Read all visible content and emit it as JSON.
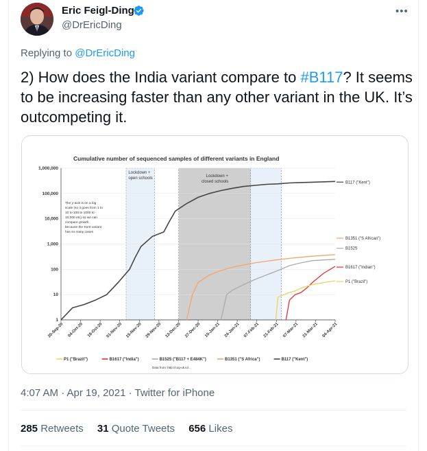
{
  "tweet": {
    "author_name": "Eric Feigl-Ding",
    "handle": "@DrEricDing",
    "more_label": "•••",
    "replying_to_prefix": "Replying to ",
    "replying_to_handle": "@DrEricDing",
    "text_part1": "2) How does the India variant compare to ",
    "hashtag": "#B117",
    "text_part2": "? It seems to be increasing faster than any other variant in the UK. It’s outcompeting it.",
    "timestamp": "4:07 AM · Apr 19, 2021 · Twitter for iPhone",
    "retweets_count": "285",
    "retweets_label": "Retweets",
    "quotes_count": "31",
    "quotes_label": "Quote Tweets",
    "likes_count": "656",
    "likes_label": "Likes"
  },
  "colors": {
    "accent": "#1d9bf0",
    "verified": "#1d9bf0"
  },
  "chart_data": {
    "type": "line",
    "title": "Cumulative number of sequenced samples of different variants in England",
    "yscale": "log",
    "ylim": [
      1,
      1000000
    ],
    "yticks": [
      "1",
      "10",
      "100",
      "1,000",
      "10,000",
      "100,000",
      "1,000,000"
    ],
    "xticks": [
      "20-Sep-20",
      "04-Oct-20",
      "18-Oct-20",
      "01-Nov-20",
      "15-Nov-20",
      "29-Nov-20",
      "13-Dec-20",
      "27-Dec-20",
      "10-Jan-21",
      "24-Jan-21",
      "07-Feb-21",
      "21-Feb-21",
      "07-Mar-21",
      "21-Mar-21",
      "04-Apr-21"
    ],
    "annotations": {
      "lockdown1": "Lockdown +",
      "lockdown1b": "open schools",
      "lockdown2": "Lockdown +",
      "lockdown2b": "closed schools",
      "note1": "The y-axis is on a log",
      "note2": "scale (so it goes from 1 to",
      "note3": "10 to 100 to 1000 to",
      "note4": "10,000 etc) so we can",
      "note5": "compare growth,",
      "note6": "because the Kent variant",
      "note7": "has so many cases",
      "source": "Data from: http://cog-uk.io/..."
    },
    "series": [
      {
        "name": "B117 (\"Kent\")",
        "legend": "B117 (\"Kent\")",
        "color": "#444444",
        "points": [
          [
            0,
            1
          ],
          [
            1,
            3
          ],
          [
            2,
            4
          ],
          [
            3,
            6
          ],
          [
            4,
            10
          ],
          [
            5,
            30
          ],
          [
            6,
            100
          ],
          [
            6.5,
            300
          ],
          [
            7,
            800
          ],
          [
            8,
            2000
          ],
          [
            9,
            3000
          ],
          [
            9.5,
            8000
          ],
          [
            10,
            20000
          ],
          [
            11,
            40000
          ],
          [
            12,
            70000
          ],
          [
            13,
            100000
          ],
          [
            14,
            130000
          ],
          [
            15,
            160000
          ],
          [
            16,
            190000
          ],
          [
            17,
            210000
          ],
          [
            18,
            230000
          ],
          [
            19,
            240000
          ],
          [
            20,
            260000
          ],
          [
            21,
            270000
          ],
          [
            22,
            280000
          ],
          [
            24,
            300000
          ]
        ]
      },
      {
        "name": "B1351 (\"S African\")",
        "legend": "B1351 (\"S Africa\")",
        "color": "#f4a46a",
        "points": [
          [
            11,
            1
          ],
          [
            11.5,
            10
          ],
          [
            12,
            30
          ],
          [
            13,
            60
          ],
          [
            14,
            90
          ],
          [
            15,
            120
          ],
          [
            16,
            150
          ],
          [
            17,
            180
          ],
          [
            18,
            210
          ],
          [
            19,
            240
          ],
          [
            20,
            270
          ],
          [
            21,
            300
          ],
          [
            22,
            330
          ],
          [
            24,
            380
          ]
        ]
      },
      {
        "name": "B1525",
        "legend": "B1525 (\"B117 + E484K\")",
        "color": "#aaaaaa",
        "points": [
          [
            14,
            1
          ],
          [
            14.5,
            10
          ],
          [
            15,
            15
          ],
          [
            16,
            25
          ],
          [
            17,
            40
          ],
          [
            18,
            60
          ],
          [
            19,
            90
          ],
          [
            20,
            140
          ],
          [
            21,
            180
          ],
          [
            22,
            220
          ],
          [
            24,
            250
          ]
        ]
      },
      {
        "name": "B1617 (\"Indian\")",
        "legend": "B1617 (\"India\")",
        "color": "#e63030",
        "points": [
          [
            19.7,
            1
          ],
          [
            20,
            6
          ],
          [
            20.5,
            10
          ],
          [
            21,
            12
          ],
          [
            21.5,
            18
          ],
          [
            22,
            30
          ],
          [
            23,
            70
          ],
          [
            24,
            130
          ]
        ]
      },
      {
        "name": "P1 (\"Brazil\")",
        "legend": "P1 (\"Brazil\")",
        "color": "#ecd45a",
        "points": [
          [
            18.8,
            1
          ],
          [
            19,
            8
          ],
          [
            19.5,
            10
          ],
          [
            20,
            12
          ],
          [
            20.5,
            14
          ],
          [
            21,
            18
          ],
          [
            22,
            25
          ],
          [
            23,
            30
          ],
          [
            24,
            35
          ]
        ]
      }
    ]
  }
}
